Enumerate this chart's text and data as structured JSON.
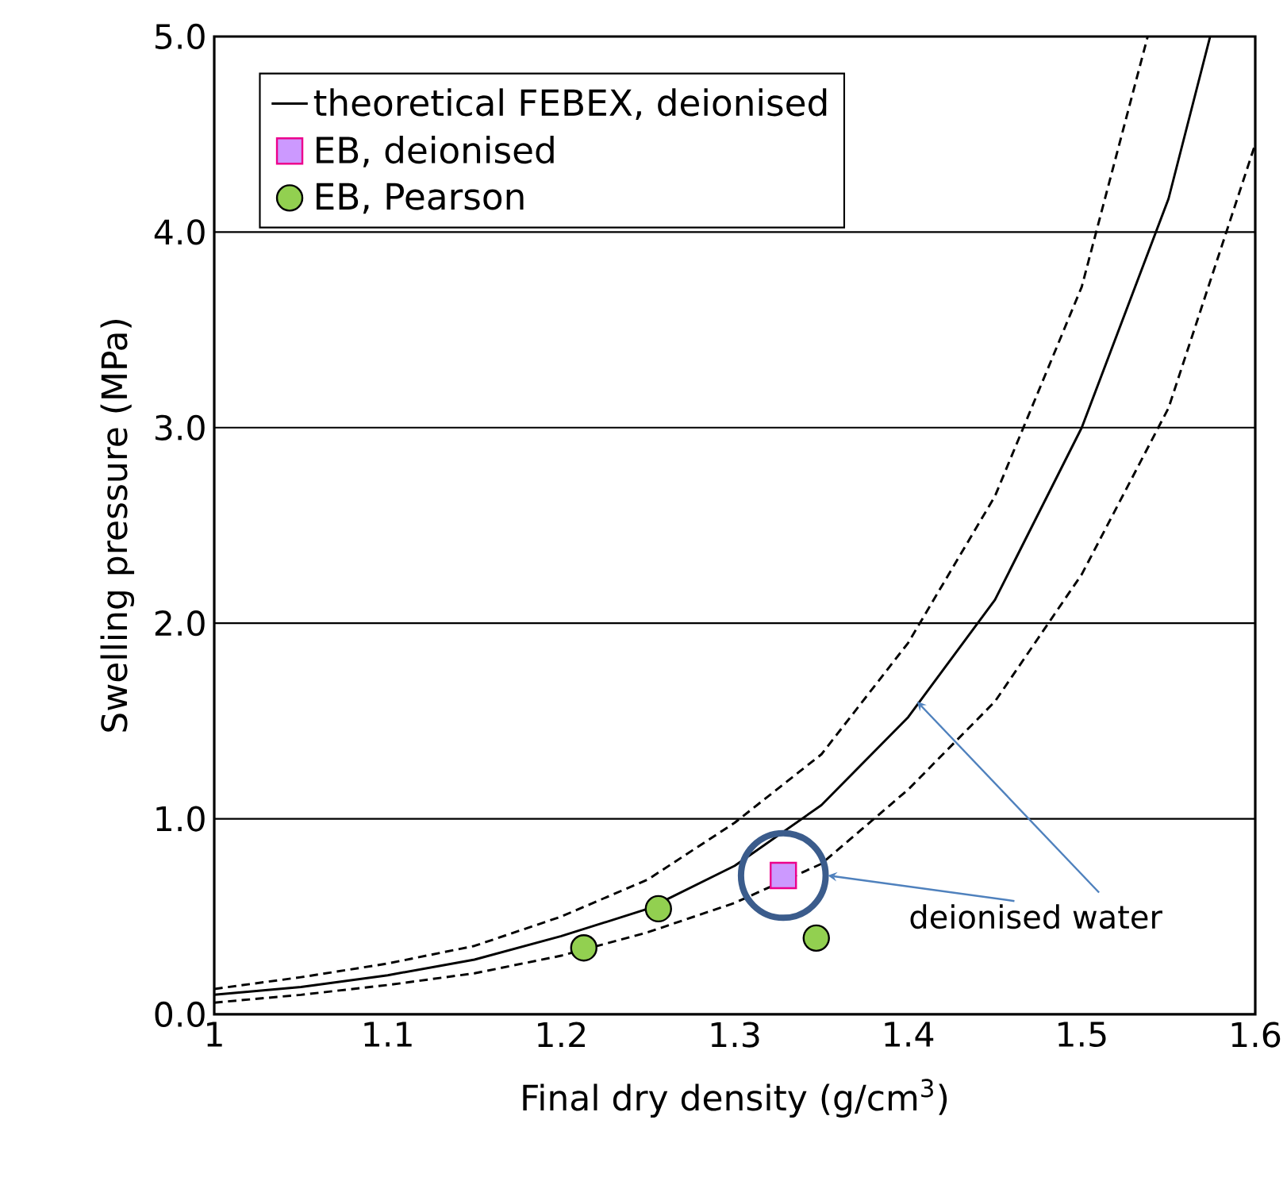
{
  "chart_data": {
    "type": "line",
    "xlabel": "Final dry density (g/cm$^{3}$)",
    "ylabel": "Swelling pressure (MPa)",
    "xlim": [
      1,
      1.6
    ],
    "ylim": [
      0,
      5
    ],
    "xticks": [
      1,
      1.1,
      1.2,
      1.3,
      1.4,
      1.5,
      1.6
    ],
    "yticks": [
      {
        "value": 0,
        "label": "0.0"
      },
      {
        "value": 1,
        "label": "1.0"
      },
      {
        "value": 2,
        "label": "2.0"
      },
      {
        "value": 3,
        "label": "3.0"
      },
      {
        "value": 4,
        "label": "4.0"
      },
      {
        "value": 5,
        "label": "5.0"
      }
    ],
    "grid": "y",
    "legend": "top left",
    "annotations": [
      {
        "text": "deionised water",
        "x": 1.405,
        "y": 1.6
      }
    ],
    "series": [
      {
        "name": "theoretical FEBEX, deionised",
        "type": "line",
        "color": "#000000",
        "marker": "none",
        "line_style": "solid",
        "x": [
          1,
          1.05,
          1.1,
          1.15,
          1.2,
          1.25,
          1.3,
          1.35,
          1.4,
          1.45,
          1.5,
          1.55,
          1.574
        ],
        "values": [
          0.1,
          0.14,
          0.2,
          0.28,
          0.4,
          0.54,
          0.76,
          1.07,
          1.52,
          2.12,
          3.0,
          4.17,
          5.0
        ]
      },
      {
        "type": "line",
        "color": "#000000",
        "marker": "none",
        "line_style": "dashed",
        "x": [
          1,
          1.05,
          1.1,
          1.15,
          1.2,
          1.25,
          1.3,
          1.35,
          1.4,
          1.45,
          1.5,
          1.538
        ],
        "values": [
          0.13,
          0.19,
          0.26,
          0.35,
          0.5,
          0.69,
          0.98,
          1.33,
          1.9,
          2.65,
          3.72,
          5.0
        ]
      },
      {
        "type": "line",
        "color": "#000000",
        "marker": "none",
        "line_style": "dashed",
        "x": [
          1,
          1.05,
          1.1,
          1.15,
          1.2,
          1.25,
          1.3,
          1.35,
          1.4,
          1.45,
          1.5,
          1.55,
          1.6
        ],
        "values": [
          0.06,
          0.1,
          0.15,
          0.21,
          0.3,
          0.42,
          0.57,
          0.77,
          1.15,
          1.6,
          2.25,
          3.1,
          4.45
        ]
      },
      {
        "name": "EB, deionised",
        "type": "scatter",
        "color": "#cc99ff",
        "marker": "square",
        "x": [
          1.328
        ],
        "values": [
          0.71
        ]
      },
      {
        "name": "EB, Pearson",
        "type": "scatter",
        "color": "#92d050",
        "marker": "circle",
        "x": [
          1.213,
          1.256,
          1.347
        ],
        "values": [
          0.34,
          0.54,
          0.39
        ]
      }
    ]
  }
}
